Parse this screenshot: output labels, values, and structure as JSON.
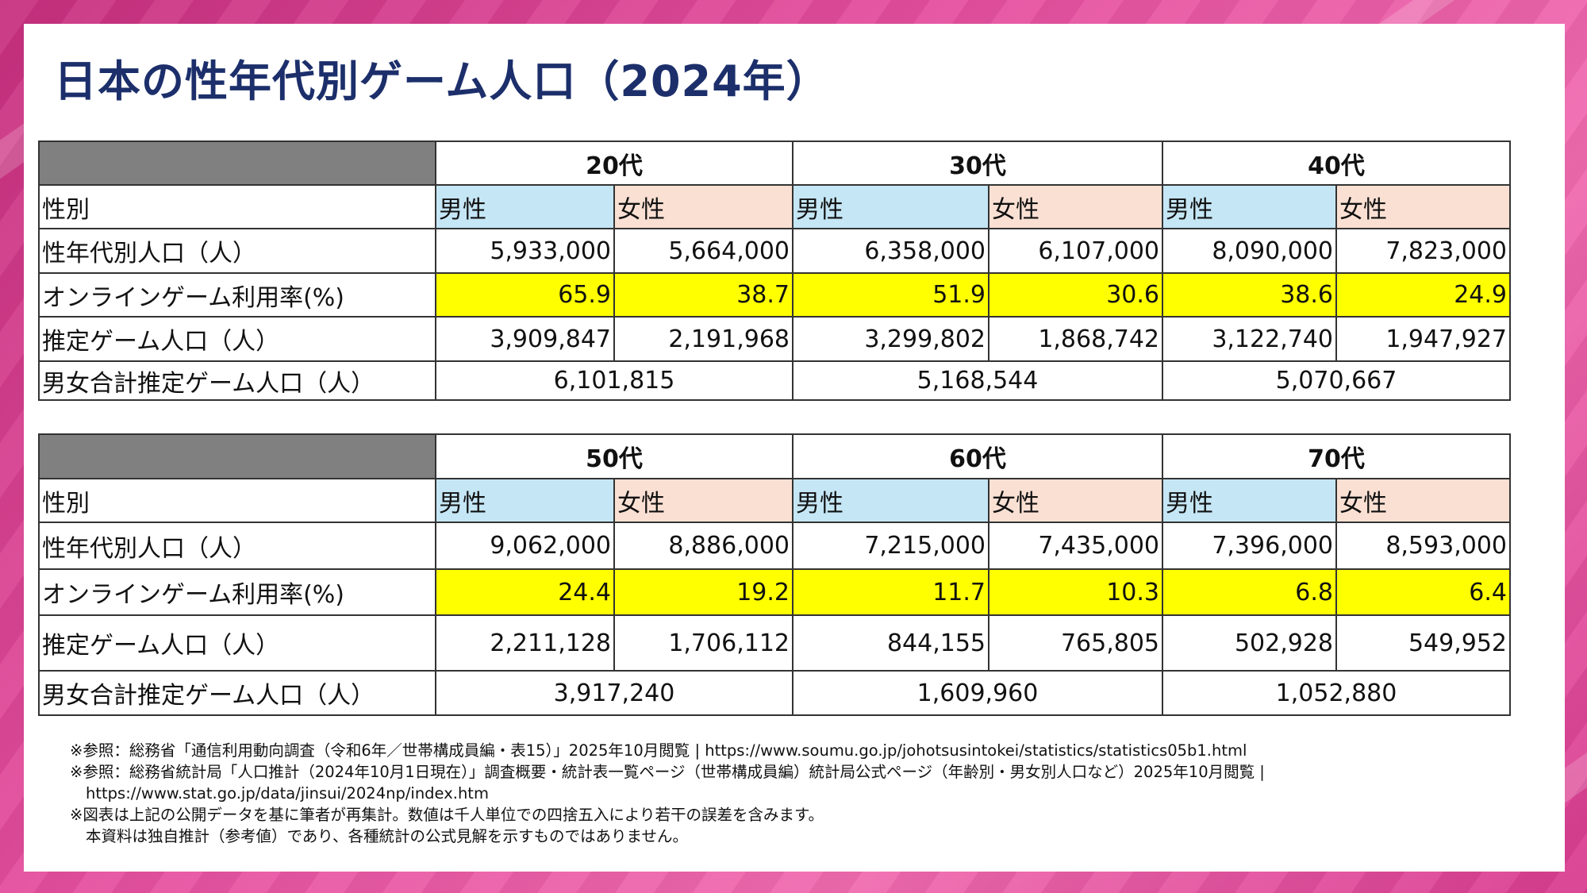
{
  "title": "日本の性年代別ゲーム人口（2024年）",
  "colors": {
    "title": "#1c2f6b",
    "male_cell": "#c5e6f5",
    "female_cell": "#fae0d3",
    "rate_highlight": "#ffff00",
    "header_corner": "#808080",
    "background": "#e0489b"
  },
  "row_labels": {
    "gender": "性別",
    "population": "性年代別人口（人）",
    "rate": "オンラインゲーム利用率(%)",
    "gamers": "推定ゲーム人口（人）",
    "total": "男女合計推定ゲーム人口（人）"
  },
  "gender_labels": {
    "male": "男性",
    "female": "女性"
  },
  "tables": [
    {
      "groups": [
        {
          "age": "20代",
          "male_pop": "5,933,000",
          "female_pop": "5,664,000",
          "male_rate": "65.9",
          "female_rate": "38.7",
          "male_gamers": "3,909,847",
          "female_gamers": "2,191,968",
          "total": "6,101,815"
        },
        {
          "age": "30代",
          "male_pop": "6,358,000",
          "female_pop": "6,107,000",
          "male_rate": "51.9",
          "female_rate": "30.6",
          "male_gamers": "3,299,802",
          "female_gamers": "1,868,742",
          "total": "5,168,544"
        },
        {
          "age": "40代",
          "male_pop": "8,090,000",
          "female_pop": "7,823,000",
          "male_rate": "38.6",
          "female_rate": "24.9",
          "male_gamers": "3,122,740",
          "female_gamers": "1,947,927",
          "total": "5,070,667"
        }
      ]
    },
    {
      "groups": [
        {
          "age": "50代",
          "male_pop": "9,062,000",
          "female_pop": "8,886,000",
          "male_rate": "24.4",
          "female_rate": "19.2",
          "male_gamers": "2,211,128",
          "female_gamers": "1,706,112",
          "total": "3,917,240"
        },
        {
          "age": "60代",
          "male_pop": "7,215,000",
          "female_pop": "7,435,000",
          "male_rate": "11.7",
          "female_rate": "10.3",
          "male_gamers": "844,155",
          "female_gamers": "765,805",
          "total": "1,609,960"
        },
        {
          "age": "70代",
          "male_pop": "7,396,000",
          "female_pop": "8,593,000",
          "male_rate": "6.8",
          "female_rate": "6.4",
          "male_gamers": "502,928",
          "female_gamers": "549,952",
          "total": "1,052,880"
        }
      ]
    }
  ],
  "notes": [
    "※参照：総務省「通信利用動向調査（令和6年／世帯構成員編・表15）」2025年10月閲覧 | https://www.soumu.go.jp/johotsusintokei/statistics/statistics05b1.html",
    "※参照：総務省統計局「人口推計（2024年10月1日現在）」調査概要・統計表一覧ページ（世帯構成員編）統計局公式ページ（年齢別・男女別人口など）2025年10月閲覧 |",
    "https://www.stat.go.jp/data/jinsui/2024np/index.htm",
    "※図表は上記の公開データを基に筆者が再集計。数値は千人単位での四捨五入により若干の誤差を含みます。",
    "本資料は独自推計（参考値）であり、各種統計の公式見解を示すものではありません。"
  ]
}
